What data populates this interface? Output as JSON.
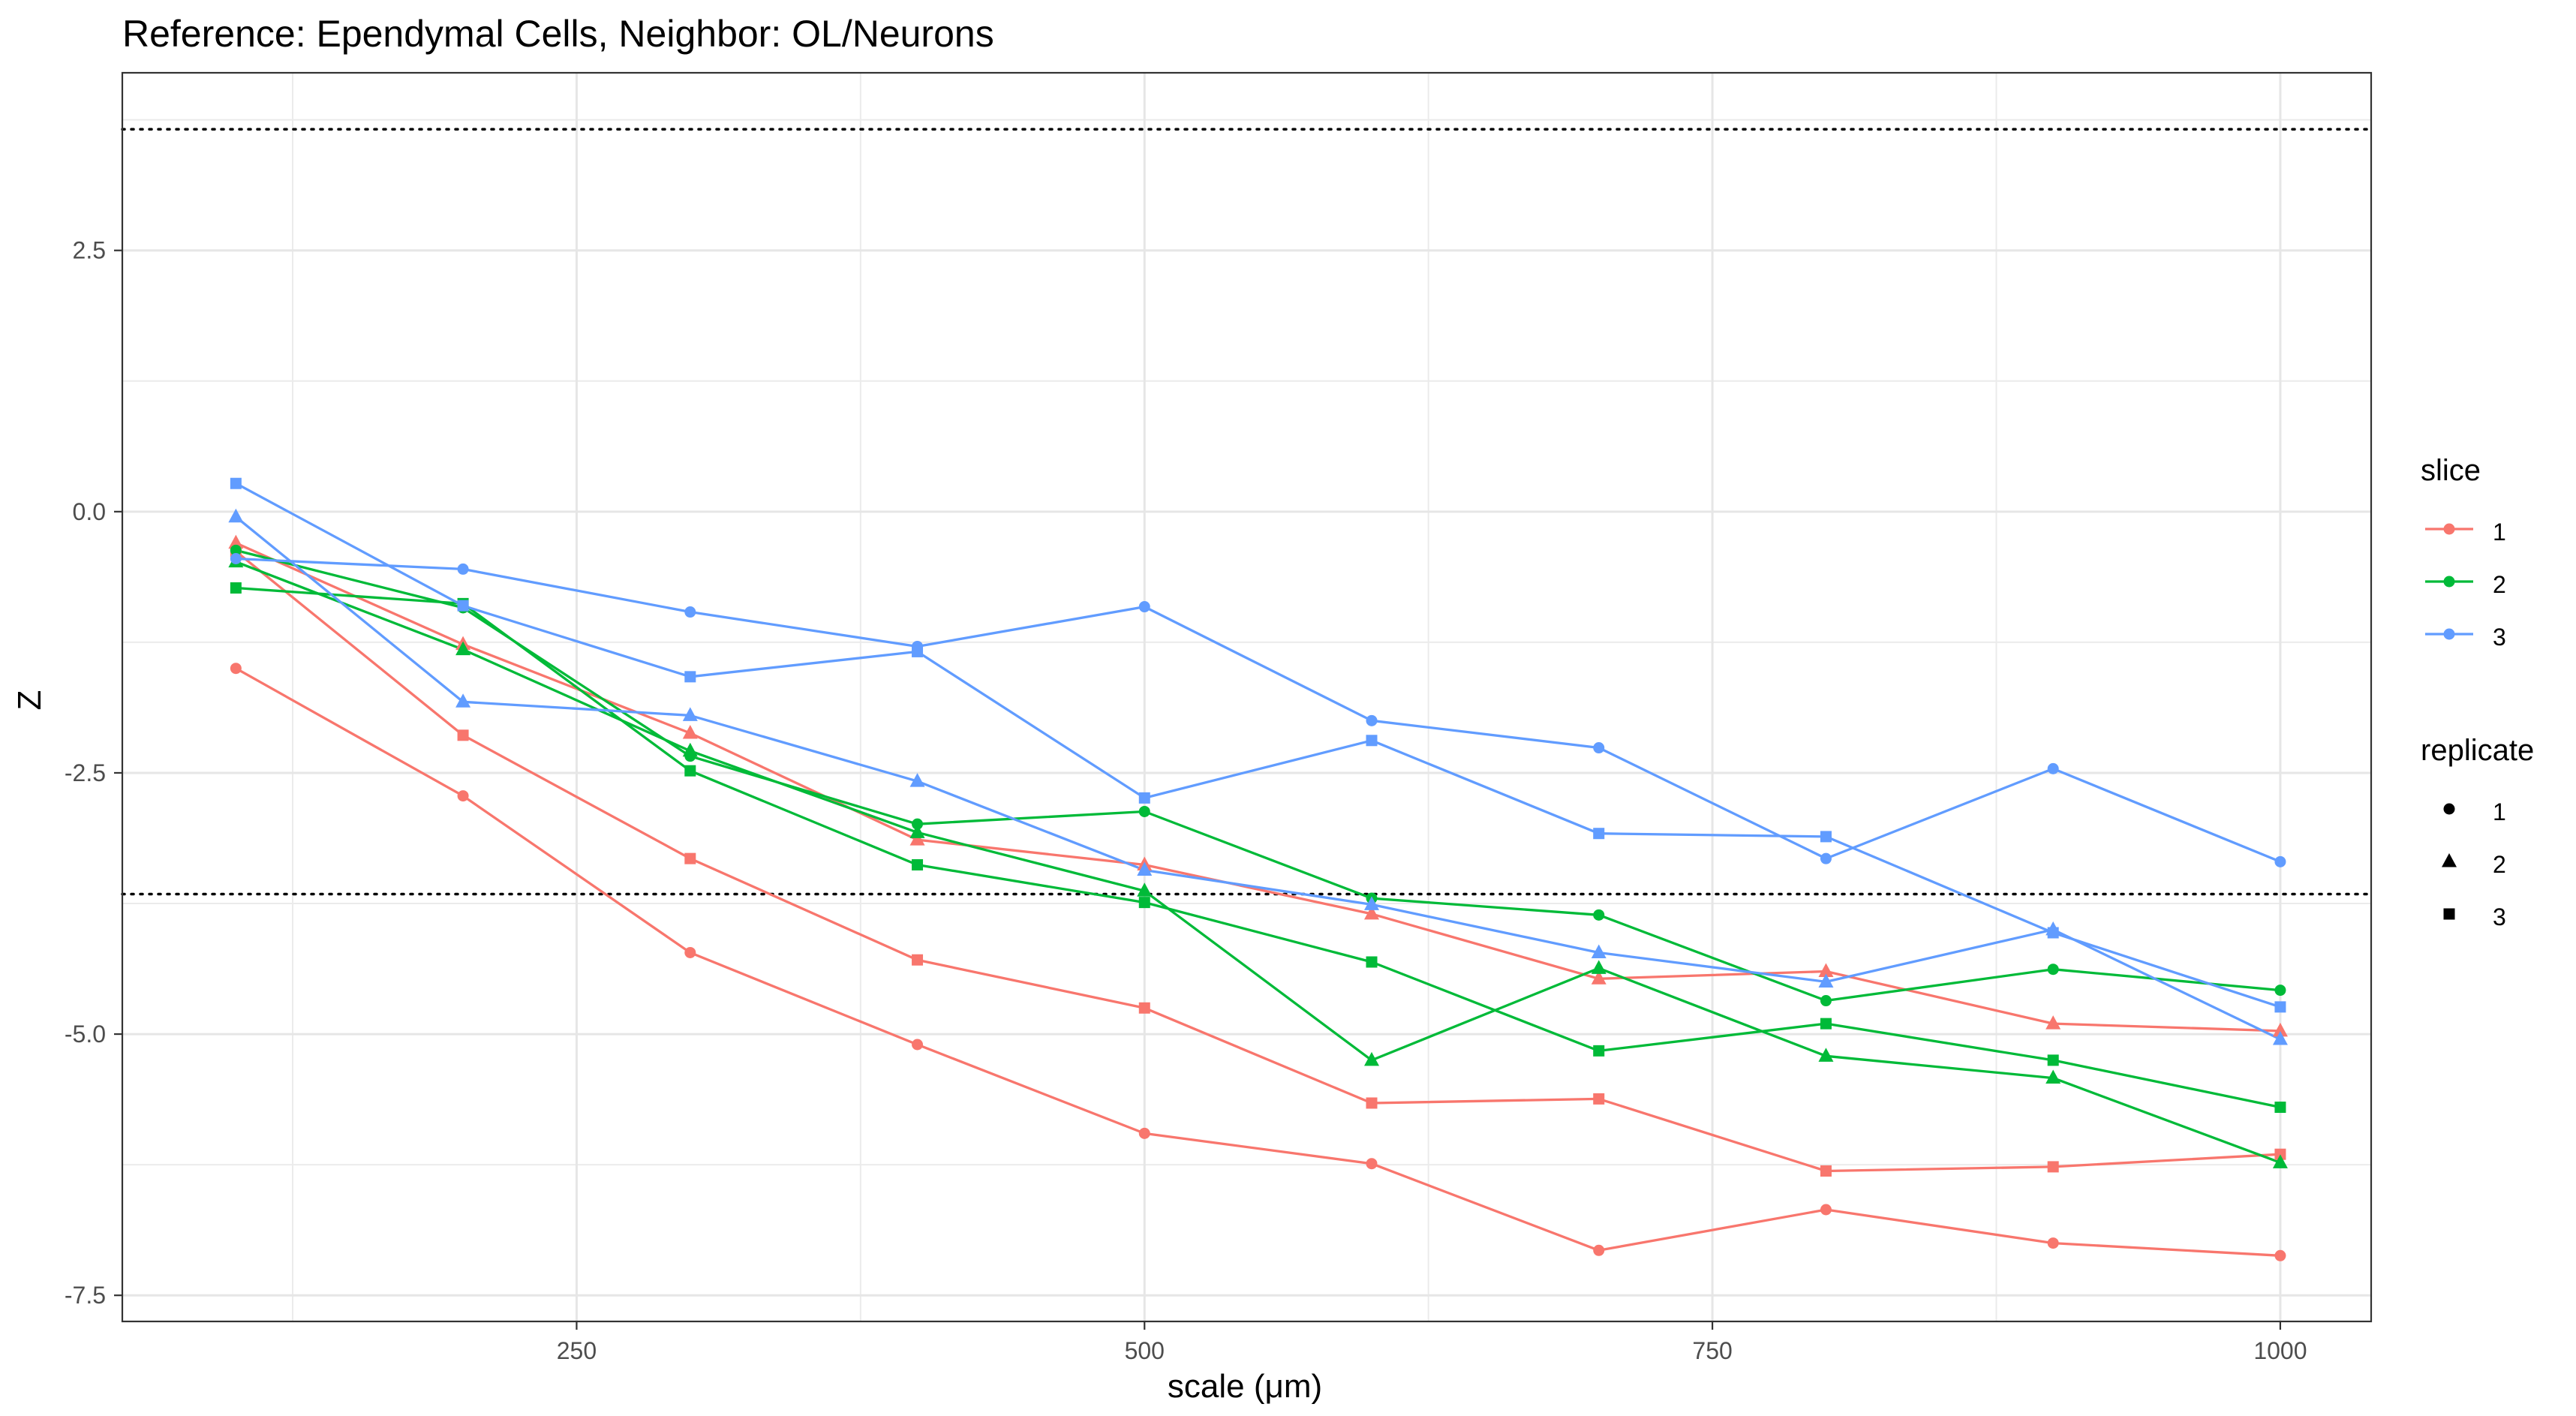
{
  "chart_data": {
    "type": "line",
    "title": "Reference: Ependymal Cells, Neighbor: OL/Neurons",
    "xlabel": "scale (μm)",
    "ylabel": "Z",
    "xlim": [
      50,
      1040
    ],
    "ylim": [
      -7.75,
      4.2
    ],
    "x_ticks": [
      250,
      500,
      750,
      1000
    ],
    "x_tick_labels": [
      "250",
      "500",
      "750",
      "1000"
    ],
    "y_ticks": [
      2.5,
      0.0,
      -2.5,
      -5.0,
      -7.5
    ],
    "y_tick_labels": [
      "2.5",
      "0.0",
      "-2.5",
      "-5.0",
      "-7.5"
    ],
    "reference_lines": [
      3.66,
      -3.66
    ],
    "grid": true,
    "legend_position": "right",
    "legends": [
      {
        "title": "slice",
        "entries": [
          {
            "label": "1",
            "color": "#F8766D"
          },
          {
            "label": "2",
            "color": "#00BA38"
          },
          {
            "label": "3",
            "color": "#619CFF"
          }
        ]
      },
      {
        "title": "replicate",
        "entries": [
          {
            "label": "1",
            "shape": "circle"
          },
          {
            "label": "2",
            "shape": "triangle"
          },
          {
            "label": "3",
            "shape": "square"
          }
        ]
      }
    ],
    "x": [
      100,
      200,
      300,
      400,
      500,
      600,
      700,
      800,
      900,
      1000
    ],
    "series": [
      {
        "slice": "1",
        "replicate": "1",
        "color": "#F8766D",
        "shape": "circle",
        "values": [
          -1.5,
          -2.72,
          -4.22,
          -5.1,
          -5.95,
          -6.24,
          -7.07,
          -6.68,
          -7.0,
          -7.12
        ]
      },
      {
        "slice": "1",
        "replicate": "2",
        "color": "#F8766D",
        "shape": "triangle",
        "values": [
          -0.3,
          -1.27,
          -2.12,
          -3.14,
          -3.38,
          -3.85,
          -4.47,
          -4.4,
          -4.9,
          -4.97
        ]
      },
      {
        "slice": "1",
        "replicate": "3",
        "color": "#F8766D",
        "shape": "square",
        "values": [
          -0.38,
          -2.14,
          -3.32,
          -4.29,
          -4.75,
          -5.66,
          -5.62,
          -6.31,
          -6.27,
          -6.15
        ]
      },
      {
        "slice": "2",
        "replicate": "1",
        "color": "#00BA38",
        "shape": "circle",
        "values": [
          -0.37,
          -0.92,
          -2.34,
          -2.99,
          -2.87,
          -3.7,
          -3.86,
          -4.68,
          -4.38,
          -4.58
        ]
      },
      {
        "slice": "2",
        "replicate": "2",
        "color": "#00BA38",
        "shape": "triangle",
        "values": [
          -0.48,
          -1.32,
          -2.29,
          -3.07,
          -3.63,
          -5.25,
          -4.37,
          -5.21,
          -5.42,
          -6.23
        ]
      },
      {
        "slice": "2",
        "replicate": "3",
        "color": "#00BA38",
        "shape": "square",
        "values": [
          -0.73,
          -0.88,
          -2.48,
          -3.38,
          -3.74,
          -4.31,
          -5.16,
          -4.9,
          -5.25,
          -5.7
        ]
      },
      {
        "slice": "3",
        "replicate": "1",
        "color": "#619CFF",
        "shape": "circle",
        "values": [
          -0.45,
          -0.55,
          -0.96,
          -1.29,
          -0.91,
          -2.0,
          -2.26,
          -3.32,
          -2.46,
          -3.35
        ]
      },
      {
        "slice": "3",
        "replicate": "2",
        "color": "#619CFF",
        "shape": "triangle",
        "values": [
          -0.05,
          -1.82,
          -1.95,
          -2.58,
          -3.43,
          -3.76,
          -4.22,
          -4.5,
          -4.0,
          -5.05
        ]
      },
      {
        "slice": "3",
        "replicate": "3",
        "color": "#619CFF",
        "shape": "square",
        "values": [
          0.27,
          -0.9,
          -1.58,
          -1.34,
          -2.74,
          -2.19,
          -3.08,
          -3.11,
          -4.03,
          -4.74
        ]
      }
    ]
  }
}
